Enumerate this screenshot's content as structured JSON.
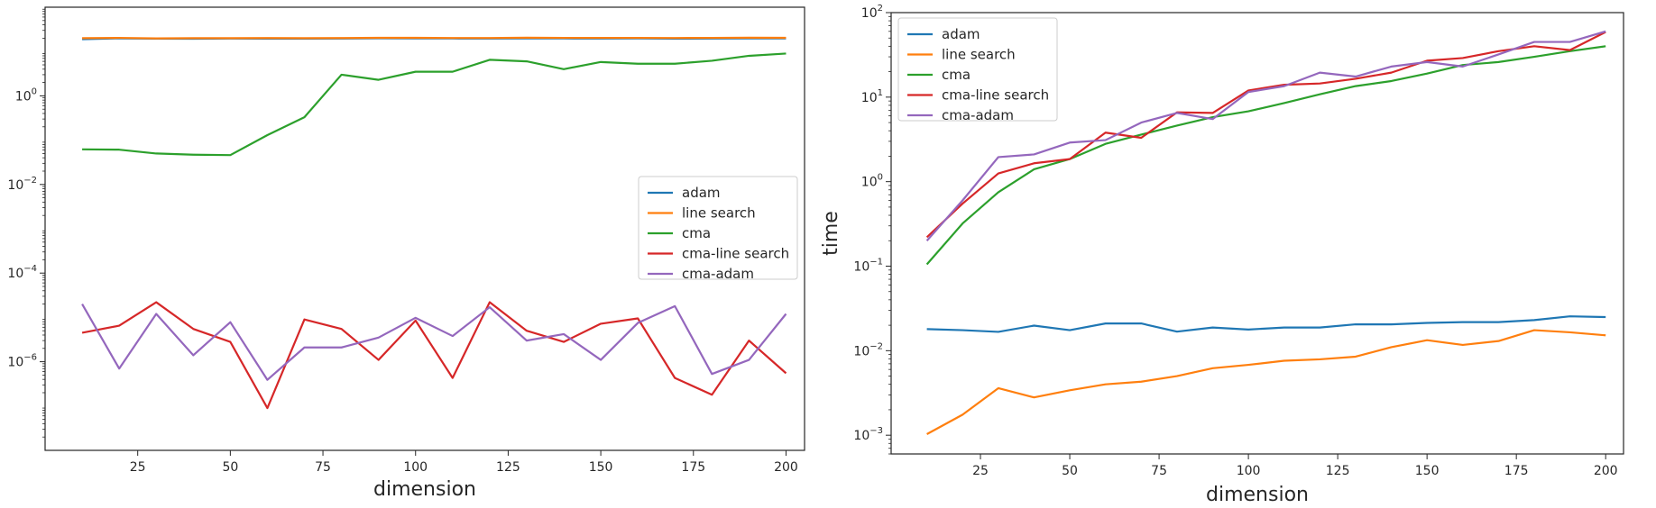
{
  "colors": {
    "adam": "#1f77b4",
    "line search": "#ff7f0e",
    "cma": "#2ca02c",
    "cma-line search": "#d62728",
    "cma-adam": "#9467bd"
  },
  "chart_data": [
    {
      "type": "line",
      "title": "",
      "xlabel": "dimension",
      "ylabel": "",
      "yscale": "log",
      "xlim": [
        0,
        205
      ],
      "ylim": [
        1e-08,
        100
      ],
      "xticks": [
        25,
        50,
        75,
        100,
        125,
        150,
        175,
        200
      ],
      "yticks": [
        {
          "value": 1,
          "mant": "10",
          "exp": "0"
        },
        {
          "value": 0.01,
          "mant": "10",
          "exp": "−2"
        },
        {
          "value": 0.0001,
          "mant": "10",
          "exp": "−4"
        },
        {
          "value": 1e-06,
          "mant": "10",
          "exp": "−6"
        }
      ],
      "legend_position": "center-right",
      "x": [
        10,
        20,
        30,
        40,
        50,
        60,
        70,
        80,
        90,
        100,
        110,
        120,
        130,
        140,
        150,
        160,
        170,
        180,
        190,
        200
      ],
      "series": [
        {
          "name": "adam",
          "values": [
            19.0,
            19.8,
            19.5,
            19.4,
            19.6,
            19.5,
            19.5,
            19.6,
            19.9,
            19.8,
            19.7,
            19.6,
            19.8,
            19.7,
            19.6,
            19.7,
            19.5,
            19.6,
            19.8,
            19.8
          ]
        },
        {
          "name": "line search",
          "values": [
            20.0,
            20.3,
            19.8,
            20.0,
            20.0,
            20.1,
            20.0,
            20.1,
            20.4,
            20.4,
            20.2,
            20.2,
            20.5,
            20.3,
            20.3,
            20.3,
            20.2,
            20.3,
            20.5,
            20.4
          ]
        },
        {
          "name": "cma",
          "values": [
            0.062,
            0.061,
            0.05,
            0.047,
            0.046,
            0.13,
            0.33,
            3.0,
            2.3,
            3.5,
            3.5,
            6.5,
            6.0,
            4.0,
            5.8,
            5.3,
            5.3,
            6.2,
            8.0,
            9.0
          ]
        },
        {
          "name": "cma-line search",
          "values": [
            4.5e-06,
            6.5e-06,
            2.2e-05,
            5.5e-06,
            2.8e-06,
            9e-08,
            9e-06,
            5.5e-06,
            1.1e-06,
            8.5e-06,
            4.3e-07,
            2.2e-05,
            5e-06,
            2.8e-06,
            7.2e-06,
            9.5e-06,
            4.3e-07,
            1.8e-07,
            3e-06,
            5.5e-07
          ]
        },
        {
          "name": "cma-adam",
          "values": [
            2e-05,
            7e-07,
            1.2e-05,
            1.4e-06,
            7.8e-06,
            3.9e-07,
            2.1e-06,
            2.1e-06,
            3.5e-06,
            9.8e-06,
            3.8e-06,
            1.7e-05,
            3e-06,
            4.2e-06,
            1.1e-06,
            7.5e-06,
            1.8e-05,
            5.3e-07,
            1.1e-06,
            1.2e-05
          ]
        }
      ]
    },
    {
      "type": "line",
      "title": "",
      "xlabel": "dimension",
      "ylabel": "time",
      "yscale": "log",
      "xlim": [
        0,
        205
      ],
      "ylim": [
        0.0006,
        100
      ],
      "xticks": [
        25,
        50,
        75,
        100,
        125,
        150,
        175,
        200
      ],
      "yticks": [
        {
          "value": 100,
          "mant": "10",
          "exp": "2"
        },
        {
          "value": 10,
          "mant": "10",
          "exp": "1"
        },
        {
          "value": 1,
          "mant": "10",
          "exp": "0"
        },
        {
          "value": 0.1,
          "mant": "10",
          "exp": "−1"
        },
        {
          "value": 0.01,
          "mant": "10",
          "exp": "−2"
        },
        {
          "value": 0.001,
          "mant": "10",
          "exp": "−3"
        }
      ],
      "legend_position": "top-left",
      "x": [
        10,
        20,
        30,
        40,
        50,
        60,
        70,
        80,
        90,
        100,
        110,
        120,
        130,
        140,
        150,
        160,
        170,
        180,
        190,
        200
      ],
      "series": [
        {
          "name": "adam",
          "values": [
            0.018,
            0.0175,
            0.0167,
            0.0198,
            0.0175,
            0.021,
            0.021,
            0.0168,
            0.0188,
            0.0178,
            0.0188,
            0.0188,
            0.0205,
            0.0205,
            0.0213,
            0.0218,
            0.0218,
            0.023,
            0.0255,
            0.025
          ]
        },
        {
          "name": "line search",
          "values": [
            0.00103,
            0.00175,
            0.0036,
            0.0028,
            0.0034,
            0.004,
            0.0043,
            0.005,
            0.0062,
            0.0068,
            0.0076,
            0.0079,
            0.0085,
            0.011,
            0.0133,
            0.0117,
            0.013,
            0.0175,
            0.0165,
            0.0152
          ]
        },
        {
          "name": "cma",
          "values": [
            0.105,
            0.32,
            0.75,
            1.4,
            1.85,
            2.8,
            3.6,
            4.6,
            5.8,
            6.8,
            8.5,
            10.8,
            13.5,
            15.5,
            19,
            24,
            26,
            30,
            35,
            40
          ]
        },
        {
          "name": "cma-line search",
          "values": [
            0.22,
            0.55,
            1.25,
            1.65,
            1.85,
            3.8,
            3.3,
            6.6,
            6.5,
            12,
            14,
            14.5,
            16.5,
            19.5,
            27,
            29,
            35,
            40,
            36,
            59
          ]
        },
        {
          "name": "cma-adam",
          "values": [
            0.2,
            0.6,
            1.95,
            2.1,
            2.9,
            3.1,
            5.0,
            6.5,
            5.5,
            11.5,
            13.5,
            19.5,
            17.5,
            23,
            26,
            23,
            32,
            45,
            45,
            60
          ]
        }
      ]
    }
  ]
}
